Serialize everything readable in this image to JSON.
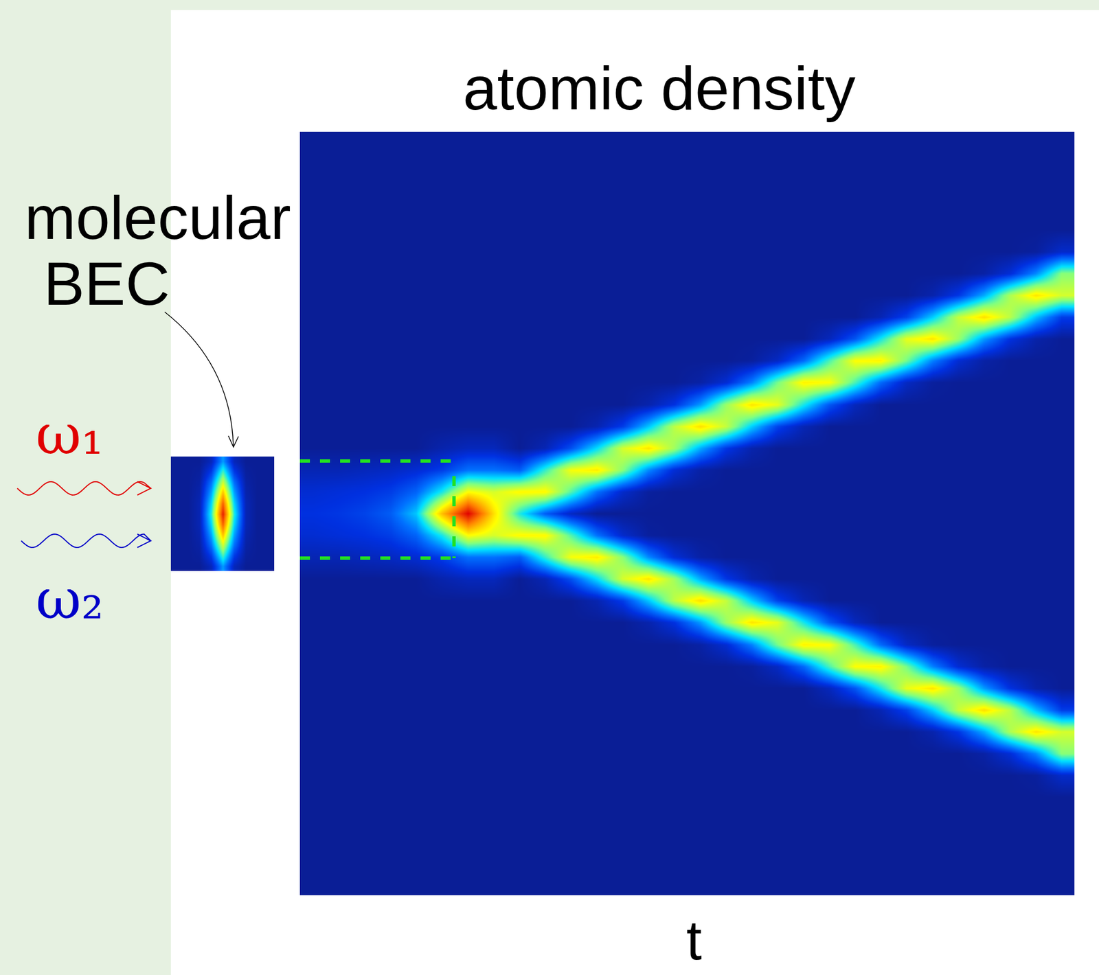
{
  "chart_data": [
    {
      "type": "heatmap",
      "title": "atomic density",
      "xlabel": "t",
      "tick_labels": false,
      "cells": [
        [
          0,
          0,
          0,
          0,
          0,
          0,
          0,
          0,
          0,
          0,
          0,
          0,
          0,
          0,
          0,
          0.4,
          0.8,
          1,
          0.8,
          0.4,
          0,
          0,
          0,
          0,
          0,
          0,
          0,
          0,
          0,
          0,
          0,
          0,
          0,
          0,
          0
        ],
        [
          0,
          0,
          0,
          0,
          0,
          0,
          0,
          0,
          0,
          0,
          0,
          0,
          0,
          0,
          0,
          0.4,
          0.9,
          1.1,
          0.9,
          0.4,
          0,
          0,
          0,
          0,
          0,
          0,
          0,
          0,
          0,
          0,
          0,
          0,
          0,
          0,
          0
        ],
        [
          0,
          0,
          0,
          0,
          0,
          0,
          0,
          0,
          0,
          0,
          0,
          0,
          0,
          0,
          0,
          0.5,
          1,
          1.3,
          1,
          0.5,
          0,
          0,
          0,
          0,
          0,
          0,
          0,
          0,
          0,
          0,
          0,
          0,
          0,
          0,
          0
        ],
        [
          0,
          0,
          0,
          0,
          0,
          0,
          0,
          0,
          0,
          0,
          0,
          0,
          0,
          0,
          0,
          0.6,
          1.2,
          1.7,
          1.2,
          0.6,
          0,
          0,
          0,
          0,
          0,
          0,
          0,
          0,
          0,
          0,
          0,
          0,
          0,
          0,
          0
        ],
        [
          0,
          0,
          0,
          0,
          0,
          0,
          0,
          0,
          0,
          0,
          0,
          0,
          0,
          0,
          0,
          0.8,
          1.8,
          3,
          1.8,
          0.8,
          0,
          0,
          0,
          0,
          0,
          0,
          0,
          0,
          0,
          0,
          0,
          0,
          0,
          0,
          0
        ],
        [
          0,
          0,
          0,
          0,
          0,
          0,
          0,
          0,
          0,
          0,
          0,
          0,
          0,
          0,
          0.3,
          1.2,
          3.5,
          7,
          3.5,
          1.2,
          0.3,
          0,
          0,
          0,
          0,
          0,
          0,
          0,
          0,
          0,
          0,
          0,
          0,
          0,
          0
        ],
        [
          0,
          0,
          0,
          0,
          0,
          0,
          0,
          0,
          0,
          0,
          0,
          0,
          0,
          0,
          0.5,
          2,
          6,
          10,
          6,
          2,
          0.5,
          0,
          0,
          0,
          0,
          0,
          0,
          0,
          0,
          0,
          0,
          0,
          0,
          0,
          0
        ],
        [
          0,
          0,
          0,
          0,
          0,
          0,
          0,
          0,
          0,
          0,
          0,
          0,
          0,
          0,
          0.5,
          2,
          5.5,
          6.5,
          5.5,
          2,
          0.5,
          0,
          0,
          0,
          0,
          0,
          0,
          0,
          0,
          0,
          0,
          0,
          0,
          0,
          0
        ],
        [
          0,
          0,
          0,
          0,
          0,
          0,
          0,
          0,
          0,
          0,
          0,
          0,
          0,
          0,
          0,
          1.7,
          6.1,
          3.6,
          6.1,
          1.7,
          0,
          0,
          0,
          0,
          0,
          0,
          0,
          0,
          0,
          0,
          0,
          0,
          0,
          0,
          0
        ],
        [
          0,
          0,
          0,
          0,
          0,
          0,
          0,
          0,
          0,
          0,
          0,
          0,
          0,
          0,
          0.4,
          3.8,
          6.1,
          1.7,
          6.1,
          3.8,
          0.4,
          0,
          0,
          0,
          0,
          0,
          0,
          0,
          0,
          0,
          0,
          0,
          0,
          0,
          0
        ],
        [
          0,
          0,
          0,
          0,
          0,
          0,
          0,
          0,
          0,
          0,
          0,
          0,
          0,
          0,
          1.5,
          5.9,
          4.1,
          0.6,
          4.1,
          5.9,
          1.5,
          0,
          0,
          0,
          0,
          0,
          0,
          0,
          0,
          0,
          0,
          0,
          0,
          0,
          0
        ],
        [
          0,
          0,
          0,
          0,
          0,
          0,
          0,
          0,
          0,
          0,
          0,
          0,
          0,
          0.35,
          3.3,
          6.3,
          2,
          0,
          2,
          6.3,
          3.3,
          0.35,
          0,
          0,
          0,
          0,
          0,
          0,
          0,
          0,
          0,
          0,
          0,
          0,
          0
        ],
        [
          0,
          0,
          0,
          0,
          0,
          0,
          0,
          0,
          0,
          0,
          0,
          0,
          0,
          1.2,
          5.5,
          4.6,
          0.7,
          0,
          0.7,
          4.6,
          5.5,
          1.2,
          0,
          0,
          0,
          0,
          0,
          0,
          0,
          0,
          0,
          0,
          0,
          0,
          0
        ],
        [
          0,
          0,
          0,
          0,
          0,
          0,
          0,
          0,
          0,
          0,
          0,
          0,
          0.3,
          3,
          6.4,
          2.3,
          0.1,
          0,
          0.1,
          2.3,
          6.4,
          3,
          0.3,
          0,
          0,
          0,
          0,
          0,
          0,
          0,
          0,
          0,
          0,
          0,
          0
        ],
        [
          0,
          0,
          0,
          0,
          0,
          0,
          0,
          0,
          0,
          0,
          0,
          0,
          1,
          5.2,
          4.9,
          0.85,
          0,
          0,
          0,
          0.85,
          4.9,
          5.2,
          1,
          0,
          0,
          0,
          0,
          0,
          0,
          0,
          0,
          0,
          0,
          0,
          0
        ],
        [
          0,
          0,
          0,
          0,
          0,
          0,
          0,
          0,
          0,
          0,
          0,
          0.2,
          2.5,
          6.5,
          2.7,
          0.2,
          0,
          0,
          0,
          0.2,
          2.7,
          6.5,
          2.5,
          0.2,
          0,
          0,
          0,
          0,
          0,
          0,
          0,
          0,
          0,
          0,
          0
        ],
        [
          0,
          0,
          0,
          0,
          0,
          0,
          0,
          0,
          0,
          0,
          0,
          0.8,
          4.8,
          5.3,
          1.1,
          0,
          0,
          0,
          0,
          0,
          1.1,
          5.3,
          4.8,
          0.8,
          0,
          0,
          0,
          0,
          0,
          0,
          0,
          0,
          0,
          0,
          0
        ],
        [
          0,
          0,
          0,
          0,
          0,
          0,
          0,
          0,
          0,
          0,
          0.1,
          2.2,
          6.4,
          3.1,
          0.3,
          0,
          0,
          0,
          0,
          0,
          0.3,
          3.1,
          6.4,
          2.2,
          0.1,
          0,
          0,
          0,
          0,
          0,
          0,
          0,
          0,
          0,
          0
        ],
        [
          0,
          0,
          0,
          0,
          0,
          0,
          0,
          0,
          0,
          0,
          0.6,
          4.4,
          5.7,
          1.3,
          0,
          0,
          0,
          0,
          0,
          0,
          0,
          1.3,
          5.7,
          4.4,
          0.6,
          0,
          0,
          0,
          0,
          0,
          0,
          0,
          0,
          0,
          0
        ],
        [
          0,
          0,
          0,
          0,
          0,
          0,
          0,
          0,
          0,
          0,
          1.9,
          6.2,
          3.5,
          0.4,
          0,
          0,
          0,
          0,
          0,
          0,
          0,
          0.4,
          3.5,
          6.2,
          1.9,
          0,
          0,
          0,
          0,
          0,
          0,
          0,
          0,
          0,
          0
        ],
        [
          0,
          0,
          0,
          0,
          0,
          0,
          0,
          0,
          0,
          0.5,
          4,
          6,
          1.6,
          0,
          0,
          0,
          0,
          0,
          0,
          0,
          0,
          0,
          1.6,
          6,
          4,
          0.5,
          0,
          0,
          0,
          0,
          0,
          0,
          0,
          0,
          0
        ],
        [
          0,
          0,
          0,
          0,
          0,
          0,
          0,
          0,
          0,
          1.6,
          6,
          4,
          0.5,
          0,
          0,
          0,
          0,
          0,
          0,
          0,
          0,
          0,
          0.5,
          4,
          6,
          1.6,
          0,
          0,
          0,
          0,
          0,
          0,
          0,
          0,
          0
        ],
        [
          0,
          0,
          0,
          0,
          0,
          0,
          0,
          0,
          0.4,
          3.5,
          6.2,
          1.9,
          0,
          0,
          0,
          0,
          0,
          0,
          0,
          0,
          0,
          0,
          0,
          1.9,
          6.2,
          3.5,
          0.4,
          0,
          0,
          0,
          0,
          0,
          0,
          0,
          0
        ],
        [
          0,
          0,
          0,
          0,
          0,
          0,
          0,
          0,
          1.3,
          5.7,
          4.4,
          0.6,
          0,
          0,
          0,
          0,
          0,
          0,
          0,
          0,
          0,
          0,
          0,
          0.6,
          4.4,
          5.7,
          1.3,
          0,
          0,
          0,
          0,
          0,
          0,
          0,
          0
        ],
        [
          0,
          0,
          0,
          0,
          0,
          0,
          0,
          0.3,
          3.1,
          6.4,
          2.2,
          0.1,
          0,
          0,
          0,
          0,
          0,
          0,
          0,
          0,
          0,
          0,
          0,
          0.1,
          2.2,
          6.4,
          3.1,
          0.3,
          0,
          0,
          0,
          0,
          0,
          0,
          0
        ],
        [
          0,
          0,
          0,
          0,
          0,
          0,
          0,
          1.1,
          5.3,
          4.8,
          0.8,
          0,
          0,
          0,
          0,
          0,
          0,
          0,
          0,
          0,
          0,
          0,
          0,
          0,
          0.8,
          4.8,
          5.3,
          1.1,
          0,
          0,
          0,
          0,
          0,
          0,
          0
        ],
        [
          0,
          0,
          0,
          0,
          0,
          0,
          0.2,
          2.7,
          6.5,
          2.5,
          0.2,
          0,
          0,
          0,
          0,
          0,
          0,
          0,
          0,
          0,
          0,
          0,
          0,
          0,
          0.2,
          2.5,
          6.5,
          2.7,
          0.2,
          0,
          0,
          0,
          0,
          0,
          0
        ],
        [
          0,
          0,
          0,
          0,
          0,
          0,
          0.85,
          5,
          5.2,
          1,
          0,
          0,
          0,
          0,
          0,
          0,
          0,
          0,
          0,
          0,
          0,
          0,
          0,
          0,
          0,
          1,
          5.2,
          5,
          0.85,
          0,
          0,
          0,
          0,
          0,
          0
        ],
        [
          0,
          0,
          0,
          0,
          0,
          0.1,
          2.3,
          6.4,
          2.9,
          0.25,
          0,
          0,
          0,
          0,
          0,
          0,
          0,
          0,
          0,
          0,
          0,
          0,
          0,
          0,
          0,
          0.25,
          2.9,
          6.4,
          2.3,
          0.1,
          0,
          0,
          0,
          0,
          0
        ],
        [
          0,
          0,
          0,
          0,
          0,
          0.7,
          4.6,
          5.5,
          1.2,
          0,
          0,
          0,
          0,
          0,
          0,
          0,
          0,
          0,
          0,
          0,
          0,
          0,
          0,
          0,
          0,
          0,
          1.2,
          5.5,
          4.6,
          0.7,
          0,
          0,
          0,
          0,
          0
        ]
      ]
    },
    {
      "type": "heatmap",
      "label": "molecular BEC",
      "tick_labels": false,
      "annotations": [
        {
          "text": "ω₁",
          "color": "#e00000"
        },
        {
          "text": "ω₂",
          "color": "#0000c8"
        }
      ],
      "cells": [
        [
          0,
          0,
          0,
          0,
          0,
          0,
          0,
          0,
          0,
          0,
          0
        ],
        [
          0,
          0,
          0,
          0,
          0,
          0,
          0,
          0,
          0,
          0,
          0
        ],
        [
          0,
          0.1,
          0.2,
          0.3,
          0.4,
          0.4,
          0.4,
          0.3,
          0.2,
          0.1,
          0
        ],
        [
          0.5,
          1.2,
          2,
          2.6,
          3.2,
          3.6,
          3.2,
          2.6,
          2,
          1.2,
          0.5
        ],
        [
          2.5,
          4,
          5.5,
          7,
          8.5,
          9.5,
          8.5,
          7,
          5.5,
          4,
          2.5
        ],
        [
          0.5,
          1.2,
          2,
          2.6,
          3.2,
          3.6,
          3.2,
          2.6,
          2,
          1.2,
          0.5
        ],
        [
          0,
          0.1,
          0.2,
          0.3,
          0.4,
          0.4,
          0.4,
          0.3,
          0.2,
          0.1,
          0
        ],
        [
          0,
          0,
          0,
          0,
          0,
          0,
          0,
          0,
          0,
          0,
          0
        ],
        [
          0,
          0,
          0,
          0,
          0,
          0,
          0,
          0,
          0,
          0,
          0
        ]
      ]
    }
  ]
}
